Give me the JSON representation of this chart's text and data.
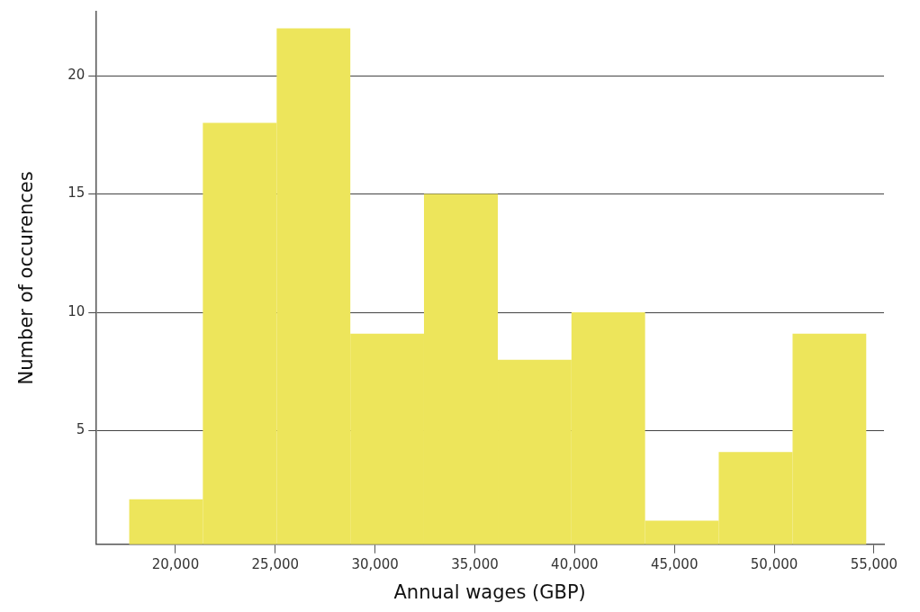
{
  "chart_data": {
    "type": "histogram",
    "xlabel": "Annual wages (GBP)",
    "ylabel": "Number of occurences",
    "bins": [
      17680,
      21370,
      25070,
      28760,
      32450,
      36150,
      39840,
      43530,
      47220,
      50920,
      54610
    ],
    "values": [
      2.1,
      18,
      22,
      9.1,
      15,
      8,
      10,
      1.2,
      4.1,
      9.1
    ],
    "color": "#ede55b",
    "xlim": [
      16000,
      55500
    ],
    "xticks": [
      {
        "value": 20000,
        "label": "20,000"
      },
      {
        "value": 25000,
        "label": "25,000"
      },
      {
        "value": 30000,
        "label": "30,000"
      },
      {
        "value": 35000,
        "label": "35,000"
      },
      {
        "value": 40000,
        "label": "40,000"
      },
      {
        "value": 45000,
        "label": "45,000"
      },
      {
        "value": 50000,
        "label": "50,000"
      },
      {
        "value": 55000,
        "label": "55,000"
      }
    ],
    "ylim": [
      0.2,
      22.7
    ],
    "yticks": [
      5,
      10,
      15,
      20
    ],
    "grid": "y"
  }
}
